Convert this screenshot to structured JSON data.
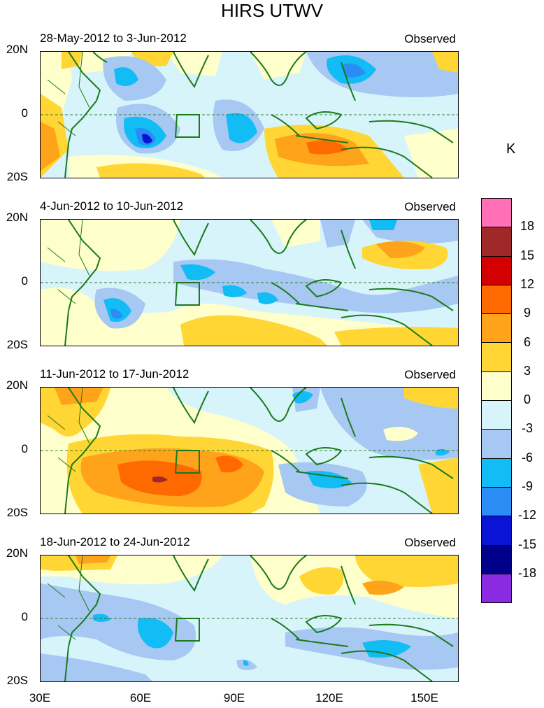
{
  "title": "HIRS UTWV",
  "observed_label": "Observed",
  "unit": "K",
  "panels": [
    {
      "period": "28-May-2012 to 3-Jun-2012"
    },
    {
      "period": "4-Jun-2012 to 10-Jun-2012"
    },
    {
      "period": "11-Jun-2012 to 17-Jun-2012"
    },
    {
      "period": "18-Jun-2012 to 24-Jun-2012"
    }
  ],
  "lat_labels": [
    "20N",
    "0",
    "20S"
  ],
  "lon_labels": [
    "30E",
    "60E",
    "90E",
    "120E",
    "150E"
  ],
  "colorbar": {
    "labels": [
      "18",
      "15",
      "12",
      "9",
      "6",
      "3",
      "0",
      "-3",
      "-6",
      "-9",
      "-12",
      "-15",
      "-18"
    ],
    "colors": [
      "#ff70b8",
      "#a12828",
      "#d40000",
      "#ff6a00",
      "#ffa31a",
      "#ffd633",
      "#ffffcc",
      "#d8f4fb",
      "#a6c8f2",
      "#12bcf4",
      "#2a8cf4",
      "#0a14d6",
      "#00008a",
      "#8a2be2"
    ]
  }
}
